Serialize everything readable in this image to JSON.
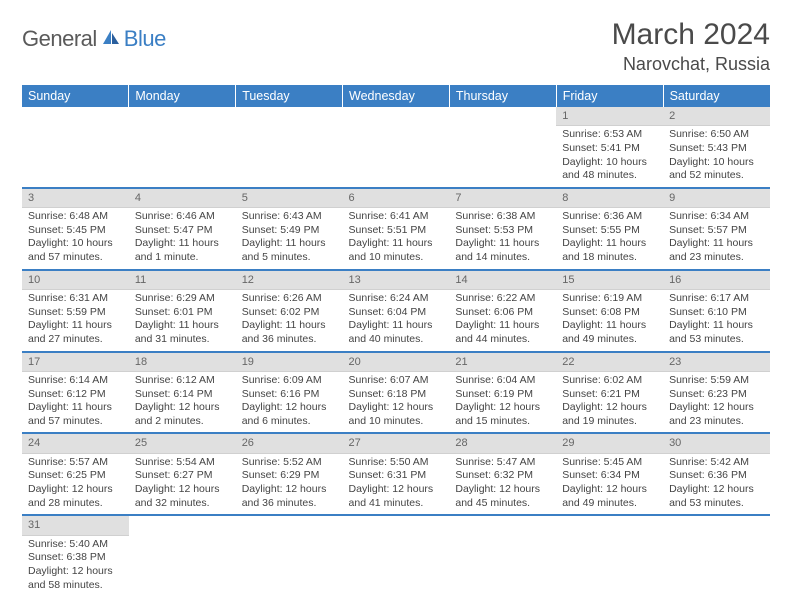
{
  "logo": {
    "general": "General",
    "blue": "Blue"
  },
  "title": "March 2024",
  "location": "Narovchat, Russia",
  "colors": {
    "header_bg": "#3b7fc4",
    "header_text": "#ffffff",
    "daynum_bg": "#e0e0e0",
    "row_border": "#3b7fc4"
  },
  "weekdays": [
    "Sunday",
    "Monday",
    "Tuesday",
    "Wednesday",
    "Thursday",
    "Friday",
    "Saturday"
  ],
  "weeks": [
    [
      null,
      null,
      null,
      null,
      null,
      {
        "n": "1",
        "sr": "Sunrise: 6:53 AM",
        "ss": "Sunset: 5:41 PM",
        "dl": "Daylight: 10 hours and 48 minutes."
      },
      {
        "n": "2",
        "sr": "Sunrise: 6:50 AM",
        "ss": "Sunset: 5:43 PM",
        "dl": "Daylight: 10 hours and 52 minutes."
      }
    ],
    [
      {
        "n": "3",
        "sr": "Sunrise: 6:48 AM",
        "ss": "Sunset: 5:45 PM",
        "dl": "Daylight: 10 hours and 57 minutes."
      },
      {
        "n": "4",
        "sr": "Sunrise: 6:46 AM",
        "ss": "Sunset: 5:47 PM",
        "dl": "Daylight: 11 hours and 1 minute."
      },
      {
        "n": "5",
        "sr": "Sunrise: 6:43 AM",
        "ss": "Sunset: 5:49 PM",
        "dl": "Daylight: 11 hours and 5 minutes."
      },
      {
        "n": "6",
        "sr": "Sunrise: 6:41 AM",
        "ss": "Sunset: 5:51 PM",
        "dl": "Daylight: 11 hours and 10 minutes."
      },
      {
        "n": "7",
        "sr": "Sunrise: 6:38 AM",
        "ss": "Sunset: 5:53 PM",
        "dl": "Daylight: 11 hours and 14 minutes."
      },
      {
        "n": "8",
        "sr": "Sunrise: 6:36 AM",
        "ss": "Sunset: 5:55 PM",
        "dl": "Daylight: 11 hours and 18 minutes."
      },
      {
        "n": "9",
        "sr": "Sunrise: 6:34 AM",
        "ss": "Sunset: 5:57 PM",
        "dl": "Daylight: 11 hours and 23 minutes."
      }
    ],
    [
      {
        "n": "10",
        "sr": "Sunrise: 6:31 AM",
        "ss": "Sunset: 5:59 PM",
        "dl": "Daylight: 11 hours and 27 minutes."
      },
      {
        "n": "11",
        "sr": "Sunrise: 6:29 AM",
        "ss": "Sunset: 6:01 PM",
        "dl": "Daylight: 11 hours and 31 minutes."
      },
      {
        "n": "12",
        "sr": "Sunrise: 6:26 AM",
        "ss": "Sunset: 6:02 PM",
        "dl": "Daylight: 11 hours and 36 minutes."
      },
      {
        "n": "13",
        "sr": "Sunrise: 6:24 AM",
        "ss": "Sunset: 6:04 PM",
        "dl": "Daylight: 11 hours and 40 minutes."
      },
      {
        "n": "14",
        "sr": "Sunrise: 6:22 AM",
        "ss": "Sunset: 6:06 PM",
        "dl": "Daylight: 11 hours and 44 minutes."
      },
      {
        "n": "15",
        "sr": "Sunrise: 6:19 AM",
        "ss": "Sunset: 6:08 PM",
        "dl": "Daylight: 11 hours and 49 minutes."
      },
      {
        "n": "16",
        "sr": "Sunrise: 6:17 AM",
        "ss": "Sunset: 6:10 PM",
        "dl": "Daylight: 11 hours and 53 minutes."
      }
    ],
    [
      {
        "n": "17",
        "sr": "Sunrise: 6:14 AM",
        "ss": "Sunset: 6:12 PM",
        "dl": "Daylight: 11 hours and 57 minutes."
      },
      {
        "n": "18",
        "sr": "Sunrise: 6:12 AM",
        "ss": "Sunset: 6:14 PM",
        "dl": "Daylight: 12 hours and 2 minutes."
      },
      {
        "n": "19",
        "sr": "Sunrise: 6:09 AM",
        "ss": "Sunset: 6:16 PM",
        "dl": "Daylight: 12 hours and 6 minutes."
      },
      {
        "n": "20",
        "sr": "Sunrise: 6:07 AM",
        "ss": "Sunset: 6:18 PM",
        "dl": "Daylight: 12 hours and 10 minutes."
      },
      {
        "n": "21",
        "sr": "Sunrise: 6:04 AM",
        "ss": "Sunset: 6:19 PM",
        "dl": "Daylight: 12 hours and 15 minutes."
      },
      {
        "n": "22",
        "sr": "Sunrise: 6:02 AM",
        "ss": "Sunset: 6:21 PM",
        "dl": "Daylight: 12 hours and 19 minutes."
      },
      {
        "n": "23",
        "sr": "Sunrise: 5:59 AM",
        "ss": "Sunset: 6:23 PM",
        "dl": "Daylight: 12 hours and 23 minutes."
      }
    ],
    [
      {
        "n": "24",
        "sr": "Sunrise: 5:57 AM",
        "ss": "Sunset: 6:25 PM",
        "dl": "Daylight: 12 hours and 28 minutes."
      },
      {
        "n": "25",
        "sr": "Sunrise: 5:54 AM",
        "ss": "Sunset: 6:27 PM",
        "dl": "Daylight: 12 hours and 32 minutes."
      },
      {
        "n": "26",
        "sr": "Sunrise: 5:52 AM",
        "ss": "Sunset: 6:29 PM",
        "dl": "Daylight: 12 hours and 36 minutes."
      },
      {
        "n": "27",
        "sr": "Sunrise: 5:50 AM",
        "ss": "Sunset: 6:31 PM",
        "dl": "Daylight: 12 hours and 41 minutes."
      },
      {
        "n": "28",
        "sr": "Sunrise: 5:47 AM",
        "ss": "Sunset: 6:32 PM",
        "dl": "Daylight: 12 hours and 45 minutes."
      },
      {
        "n": "29",
        "sr": "Sunrise: 5:45 AM",
        "ss": "Sunset: 6:34 PM",
        "dl": "Daylight: 12 hours and 49 minutes."
      },
      {
        "n": "30",
        "sr": "Sunrise: 5:42 AM",
        "ss": "Sunset: 6:36 PM",
        "dl": "Daylight: 12 hours and 53 minutes."
      }
    ],
    [
      {
        "n": "31",
        "sr": "Sunrise: 5:40 AM",
        "ss": "Sunset: 6:38 PM",
        "dl": "Daylight: 12 hours and 58 minutes."
      },
      null,
      null,
      null,
      null,
      null,
      null
    ]
  ]
}
